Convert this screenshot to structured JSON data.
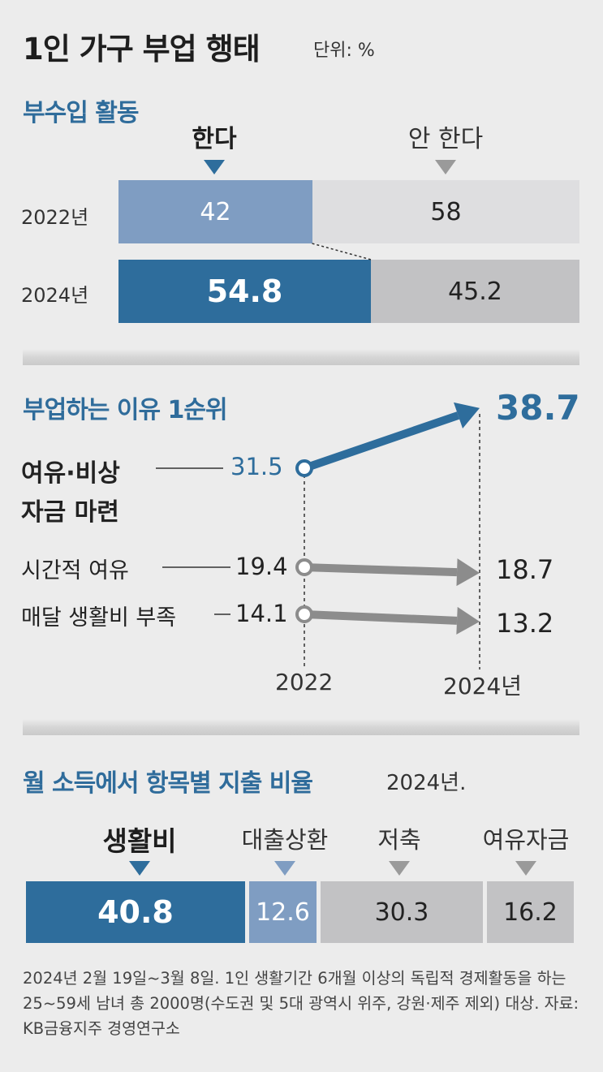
{
  "title": "1인 가구 부업 행태",
  "unit": "단위: %",
  "colors": {
    "accent": "#2e6d9c",
    "light_blue": "#7f9dc2",
    "gray_bar": "#c2c2c4",
    "light_gray_bar": "#dedee0",
    "arrow_gray": "#8c8c8c"
  },
  "section1": {
    "title": "부수입 활동",
    "header_yes": "한다",
    "header_no": "안 한다",
    "rows": [
      {
        "year": "2022년",
        "yes": 42,
        "no": 58,
        "yes_label": "42",
        "no_label": "58"
      },
      {
        "year": "2024년",
        "yes": 54.8,
        "no": 45.2,
        "yes_label": "54.8",
        "no_label": "45.2"
      }
    ]
  },
  "section2": {
    "title": "부업하는 이유 1순위",
    "years": [
      "2022",
      "2024년"
    ],
    "reasons": [
      {
        "label": "여유·비상 자금 마련",
        "label_line1": "여유·비상",
        "label_line2": "자금 마련",
        "v2022": 31.5,
        "v2024": 38.7,
        "v2022_label": "31.5",
        "v2024_label": "38.7"
      },
      {
        "label": "시간적 여유",
        "v2022": 19.4,
        "v2024": 18.7,
        "v2022_label": "19.4",
        "v2024_label": "18.7"
      },
      {
        "label": "매달 생활비 부족",
        "v2022": 14.1,
        "v2024": 13.2,
        "v2022_label": "14.1",
        "v2024_label": "13.2"
      }
    ]
  },
  "section3": {
    "title": "월 소득에서 항목별 지출 비율",
    "year": "2024년.",
    "items": [
      {
        "label": "생활비",
        "value": 40.8,
        "value_label": "40.8"
      },
      {
        "label": "대출상환",
        "value": 12.6,
        "value_label": "12.6"
      },
      {
        "label": "저축",
        "value": 30.3,
        "value_label": "30.3"
      },
      {
        "label": "여유자금",
        "value": 16.2,
        "value_label": "16.2"
      }
    ]
  },
  "footnote": "2024년 2월 19일~3월 8일. 1인 생활기간 6개월 이상의 독립적 경제활동을 하는 25~59세 남녀 총 2000명(수도권 및 5대 광역시 위주, 강원·제주 제외) 대상. 자료: KB금융지주 경영연구소",
  "chart_data": [
    {
      "type": "bar",
      "title": "부수입 활동",
      "categories": [
        "2022년",
        "2024년"
      ],
      "series": [
        {
          "name": "한다",
          "values": [
            42,
            54.8
          ]
        },
        {
          "name": "안 한다",
          "values": [
            58,
            45.2
          ]
        }
      ],
      "stacked": true,
      "orientation": "horizontal"
    },
    {
      "type": "line",
      "title": "부업하는 이유 1순위",
      "x": [
        "2022",
        "2024년"
      ],
      "series": [
        {
          "name": "여유·비상 자금 마련",
          "values": [
            31.5,
            38.7
          ]
        },
        {
          "name": "시간적 여유",
          "values": [
            19.4,
            18.7
          ]
        },
        {
          "name": "매달 생활비 부족",
          "values": [
            14.1,
            13.2
          ]
        }
      ]
    },
    {
      "type": "bar",
      "title": "월 소득에서 항목별 지출 비율",
      "categories": [
        "생활비",
        "대출상환",
        "저축",
        "여유자금"
      ],
      "values": [
        40.8,
        12.6,
        30.3,
        16.2
      ],
      "stacked": true,
      "orientation": "horizontal"
    }
  ]
}
